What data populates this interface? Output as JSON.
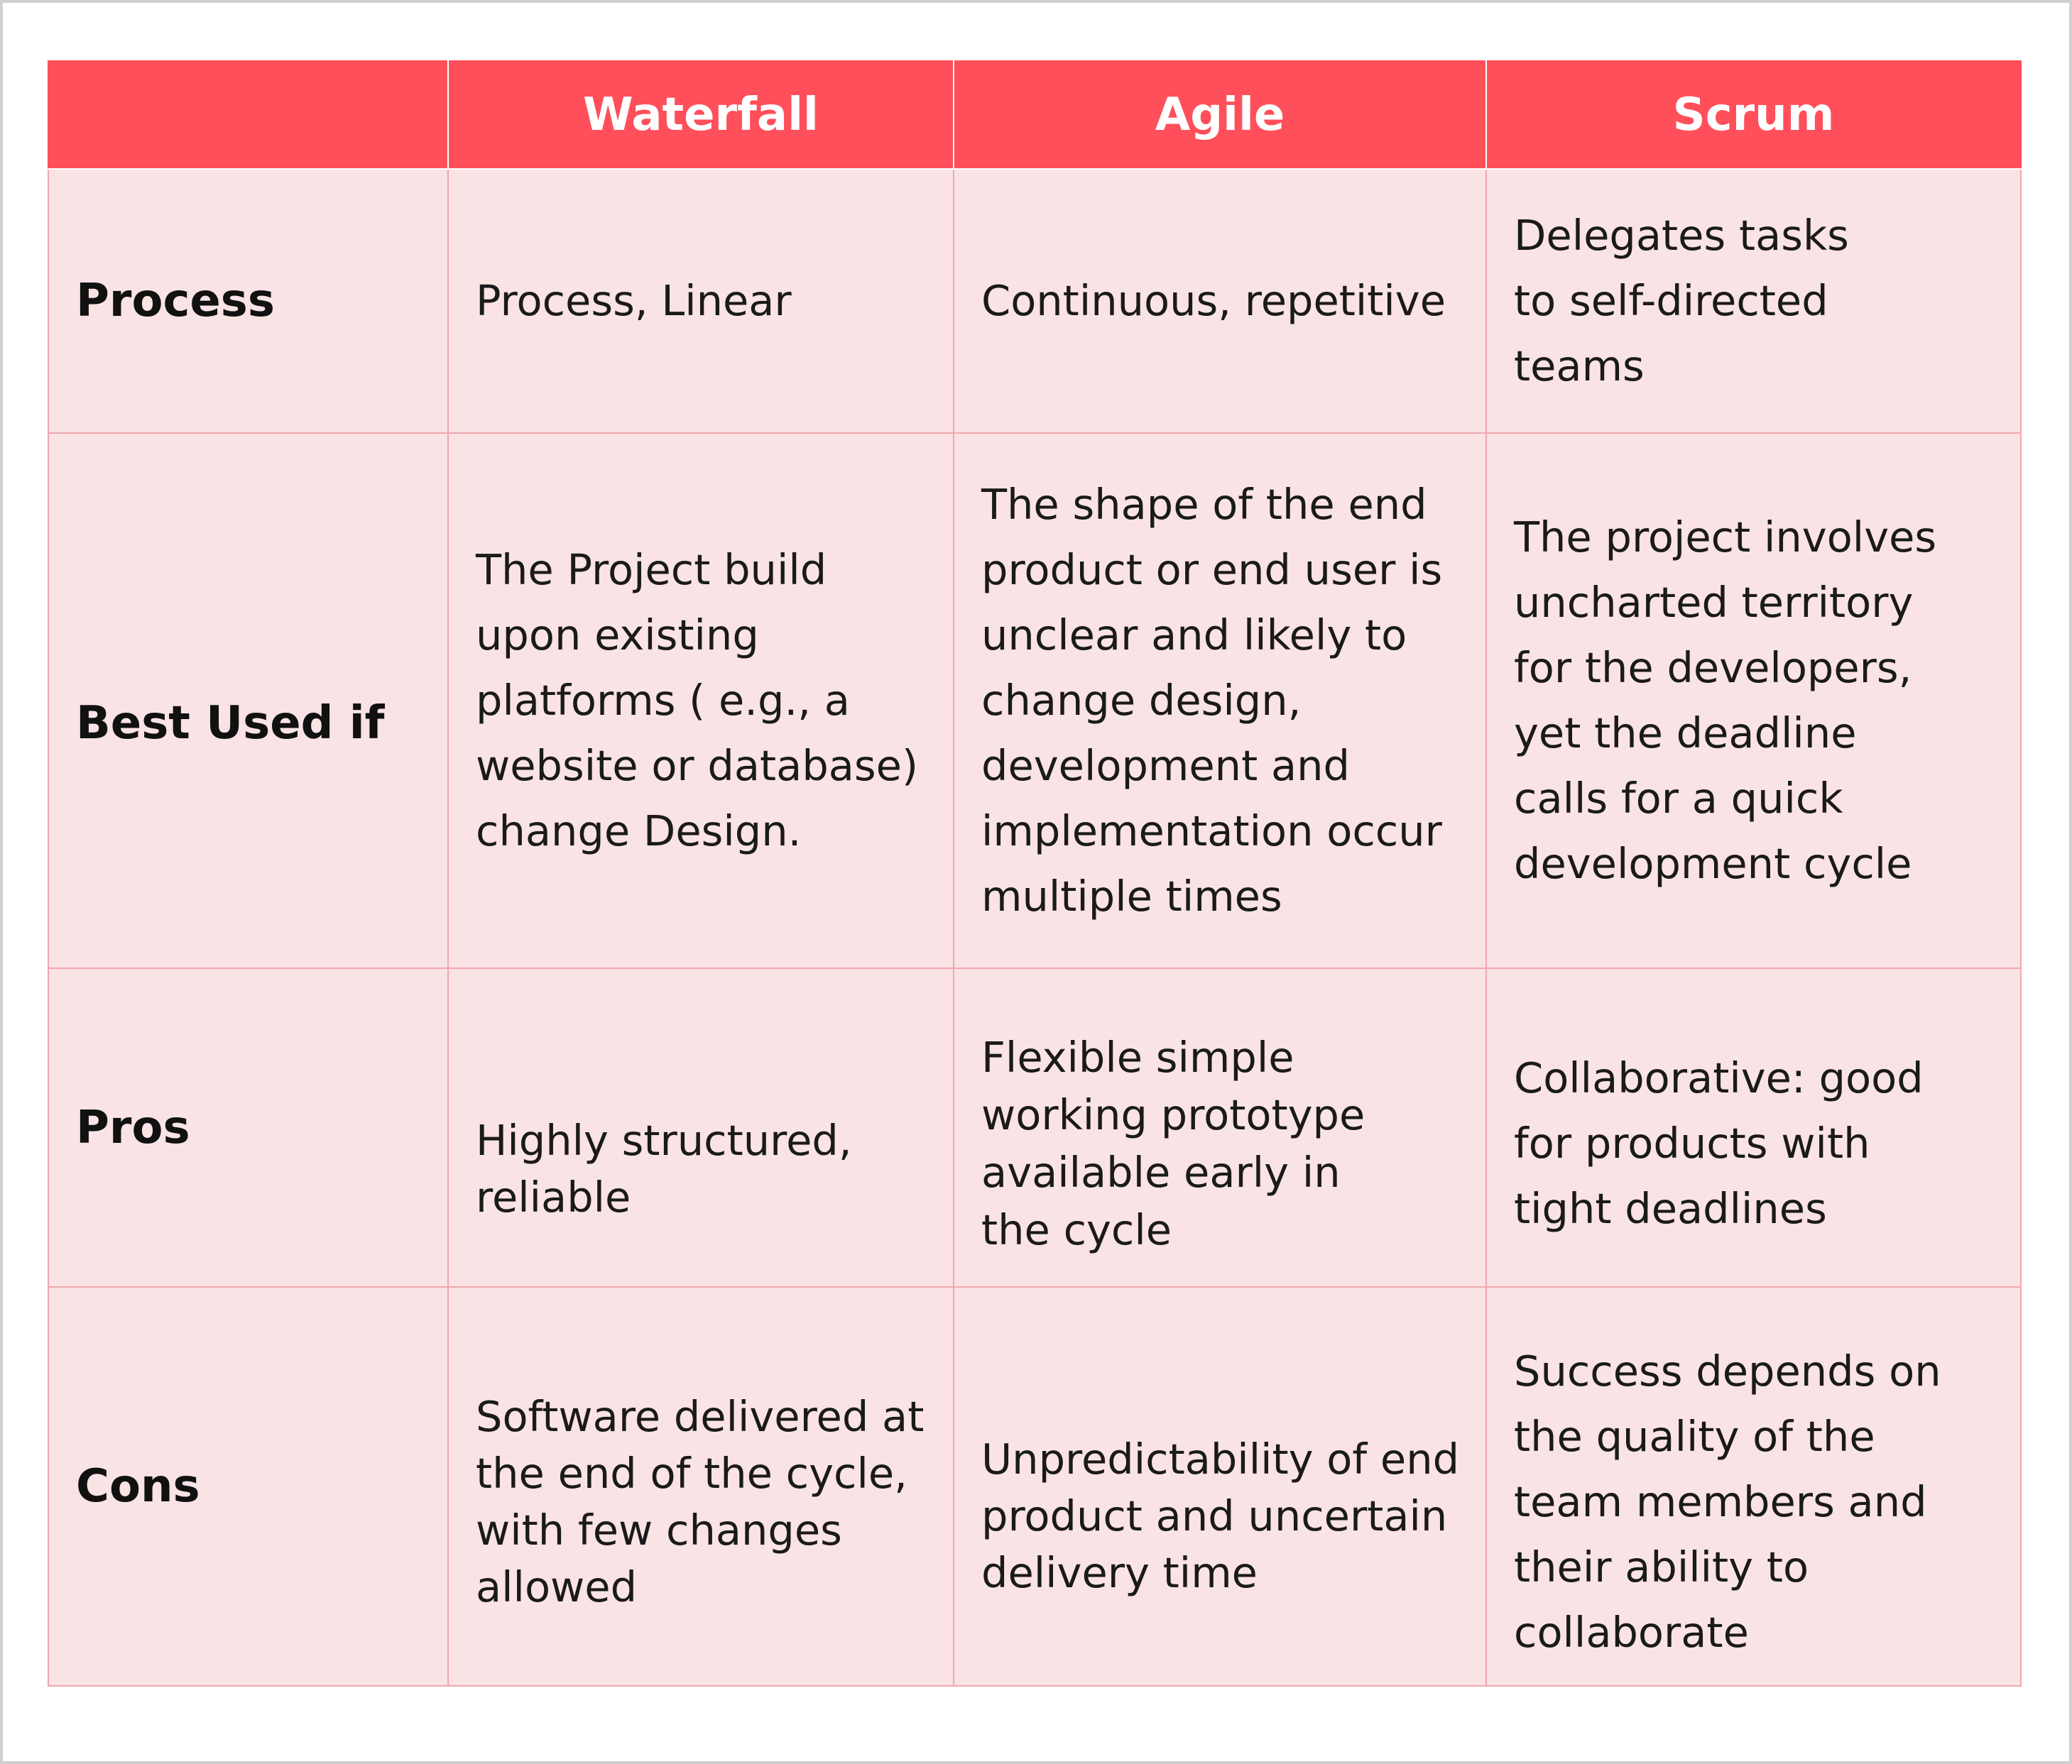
{
  "table": {
    "columns": [
      "",
      "Waterfall",
      "Agile",
      "Scrum"
    ],
    "rows": [
      {
        "label": "Process",
        "cells": [
          "Process, Linear",
          "Continuous, repetitive",
          "Delegates tasks\nto self-directed\nteams"
        ]
      },
      {
        "label": "Best Used if",
        "cells": [
          "The Project build\n upon existing\nplatforms ( e.g., a\nwebsite or database)\nchange Design.",
          "The shape of the end\nproduct or end user is\nunclear and likely to\nchange design,\ndevelopment and\nimplementation occur\nmultiple times",
          "The project involves\nuncharted territory\nfor the developers,\nyet the deadline\ncalls for a quick\ndevelopment cycle"
        ]
      },
      {
        "label": "Pros",
        "cells": [
          "Highly structured,\nreliable",
          "Flexible simple\nworking prototype\navailable early in\nthe cycle",
          "Collaborative: good\nfor products with\ntight deadlines"
        ]
      },
      {
        "label": "Cons",
        "cells": [
          "Software delivered at\nthe end of the cycle,\nwith few changes\nallowed",
          "Unpredictability of end\nproduct and uncertain\ndelivery time",
          "Success depends on\nthe quality of the\nteam members and\ntheir ability to\ncollaborate"
        ]
      }
    ]
  }
}
